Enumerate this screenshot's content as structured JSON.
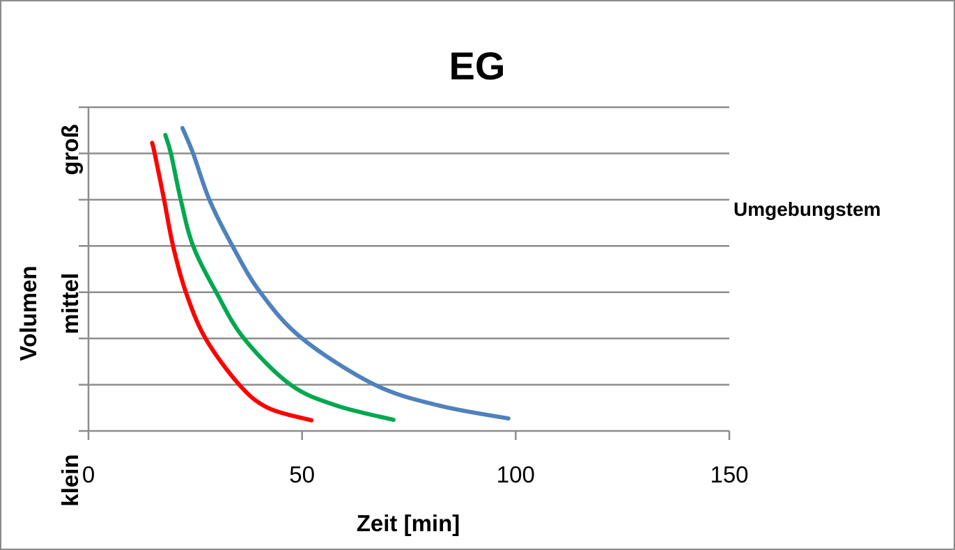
{
  "chart_data": {
    "type": "line",
    "title": "EG",
    "xlabel": "Zeit [min]",
    "ylabel": "Volumen",
    "y_category_labels": [
      "klein",
      "mittel",
      "groß"
    ],
    "xlim": [
      0,
      150
    ],
    "xticks": [
      "0",
      "50",
      "100",
      "150"
    ],
    "xtick_values": [
      0,
      50,
      100,
      150
    ],
    "ylim": [
      0,
      7
    ],
    "grid": true,
    "legend": {
      "placement": "right",
      "entries": [
        "Umgebungstem"
      ]
    },
    "series": [
      {
        "name": "red",
        "color": "#ff0000",
        "x": [
          14.9,
          15.5,
          17.7,
          19.8,
          22.8,
          27.4,
          35.3,
          42,
          52.2
        ],
        "y": [
          6.23,
          6.0,
          5.0,
          4.0,
          3.0,
          2.0,
          1.0,
          0.5,
          0.23
        ]
      },
      {
        "name": "green",
        "color": "#00a850",
        "x": [
          18.0,
          19.3,
          21.6,
          24.5,
          29.9,
          36.4,
          47.3,
          58,
          71.4
        ],
        "y": [
          6.4,
          6.0,
          5.0,
          4.0,
          3.0,
          2.0,
          1.0,
          0.55,
          0.24
        ]
      },
      {
        "name": "blue",
        "color": "#4f81bd",
        "x": [
          22.0,
          24.5,
          28.3,
          33.7,
          40.2,
          50.0,
          67.0,
          82,
          98.3
        ],
        "y": [
          6.55,
          6.0,
          5.0,
          4.0,
          3.0,
          2.0,
          1.0,
          0.55,
          0.27
        ]
      }
    ]
  }
}
